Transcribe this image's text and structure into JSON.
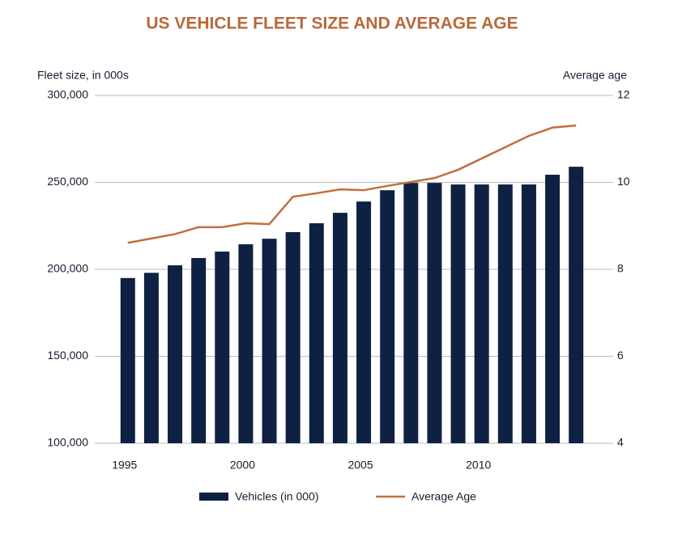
{
  "chart_data": {
    "type": "bar-line",
    "title": "US VEHICLE FLEET SIZE AND AVERAGE AGE",
    "y_label": "Fleet size, in 000s",
    "y2_label": "Average age",
    "x": [
      1995,
      1996,
      1997,
      1998,
      1999,
      2000,
      2001,
      2002,
      2003,
      2004,
      2005,
      2006,
      2007,
      2008,
      2009,
      2010,
      2011,
      2012,
      2013,
      2014
    ],
    "xlim": [
      1993.6,
      2015.4
    ],
    "xticks": [
      1995,
      2000,
      2005,
      2010
    ],
    "series": [
      {
        "name": "Vehicles (in 000)",
        "type": "bar",
        "color": "#0f2142",
        "values": [
          195000,
          198000,
          202300,
          206500,
          210200,
          214400,
          217600,
          221400,
          226500,
          232500,
          239000,
          245500,
          249700,
          249700,
          248800,
          248800,
          248800,
          248800,
          254400,
          259000
        ]
      },
      {
        "name": "Average Age",
        "type": "line",
        "axis": "y2",
        "color": "#c0703c",
        "values": [
          8.61,
          8.71,
          8.81,
          8.97,
          8.97,
          9.06,
          9.04,
          9.67,
          9.75,
          9.84,
          9.82,
          9.92,
          10.01,
          10.1,
          10.29,
          10.55,
          10.81,
          11.07,
          11.26,
          11.31
        ]
      }
    ],
    "ylim": [
      100000,
      300000
    ],
    "yticks": [
      {
        "value": 100000,
        "label": "100,000"
      },
      {
        "value": 150000,
        "label": "150,000"
      },
      {
        "value": 200000,
        "label": "200,000"
      },
      {
        "value": 250000,
        "label": "250,000"
      },
      {
        "value": 300000,
        "label": "300,000"
      }
    ],
    "y2lim": [
      4,
      12
    ],
    "y2ticks": [
      4,
      6,
      8,
      10,
      12
    ],
    "grid": true,
    "legend": "bottom"
  }
}
